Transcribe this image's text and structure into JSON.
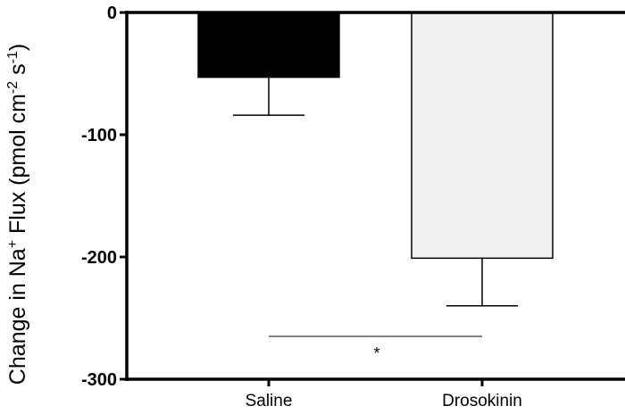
{
  "chart_data": {
    "type": "bar",
    "categories": [
      "Saline",
      "Drosokinin"
    ],
    "values": [
      -53,
      -201
    ],
    "error": [
      31,
      39
    ],
    "bar_colors": [
      "#000000",
      "#f0f0f0"
    ],
    "ylabel": "Change in Na",
    "ylabel_sup": "+",
    "ylabel_rest": " Flux (pmol cm",
    "ylabel_sup2": "-2",
    "ylabel_rest2": " s",
    "ylabel_sup3": "-1",
    "ylabel_end": ")",
    "ylim": [
      -300,
      0
    ],
    "yticks": [
      0,
      -100,
      -200,
      -300
    ],
    "ytick_labels": [
      "0",
      "-100",
      "-200",
      "-300"
    ],
    "significance": {
      "between": [
        "Saline",
        "Drosokinin"
      ],
      "label": "*",
      "y": -265
    },
    "grid": false
  }
}
